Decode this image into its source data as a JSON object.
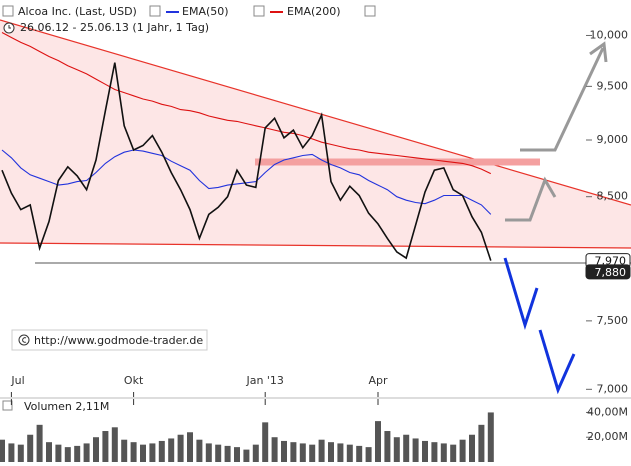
{
  "chart_data": {
    "type": "line",
    "subtitle": "26.06.12 - 25.06.13 (1 Jahr, 1 Tag)",
    "watermark": "http://www.godmode-trader.de",
    "log_scale": true,
    "categories": [
      null,
      "Jul",
      null,
      null,
      null,
      null,
      null,
      null,
      null,
      null,
      null,
      null,
      null,
      null,
      "Okt",
      null,
      null,
      null,
      null,
      null,
      null,
      null,
      null,
      null,
      null,
      null,
      null,
      null,
      "Jan '13",
      null,
      null,
      null,
      null,
      null,
      null,
      null,
      null,
      null,
      null,
      null,
      "Apr",
      null,
      null,
      null,
      null,
      null,
      null,
      null,
      null,
      null,
      null,
      null,
      null
    ],
    "series": [
      {
        "name": "Alcoa Inc. (Last, USD)",
        "color": "#111111",
        "values": [
          8730,
          8530,
          8390,
          8430,
          8070,
          8290,
          8640,
          8760,
          8680,
          8560,
          8820,
          9270,
          9730,
          9130,
          8910,
          8950,
          9040,
          8890,
          8710,
          8560,
          8390,
          8150,
          8350,
          8410,
          8500,
          8730,
          8600,
          8580,
          9110,
          9200,
          9020,
          9090,
          8930,
          9040,
          9230,
          8630,
          8470,
          8590,
          8510,
          8360,
          8270,
          8150,
          8040,
          7990,
          8260,
          8540,
          8730,
          8750,
          8560,
          8510,
          8330,
          8200,
          7970
        ]
      },
      {
        "name": "EMA(50)",
        "color": "#2233dd",
        "values": [
          8910,
          8840,
          8750,
          8690,
          8660,
          8630,
          8600,
          8610,
          8630,
          8640,
          8710,
          8790,
          8850,
          8890,
          8910,
          8900,
          8880,
          8860,
          8810,
          8770,
          8730,
          8640,
          8570,
          8580,
          8600,
          8610,
          8620,
          8630,
          8710,
          8780,
          8820,
          8840,
          8860,
          8870,
          8820,
          8780,
          8750,
          8710,
          8690,
          8640,
          8600,
          8560,
          8500,
          8470,
          8450,
          8440,
          8470,
          8510,
          8510,
          8510,
          8470,
          8430,
          8350
        ]
      },
      {
        "name": "EMA(200)",
        "color": "#dd1111",
        "values": [
          10030,
          9980,
          9930,
          9890,
          9840,
          9790,
          9750,
          9700,
          9660,
          9620,
          9570,
          9520,
          9470,
          9440,
          9410,
          9380,
          9360,
          9330,
          9310,
          9280,
          9270,
          9250,
          9220,
          9200,
          9180,
          9170,
          9150,
          9130,
          9110,
          9090,
          9070,
          9060,
          9040,
          9010,
          8980,
          8960,
          8940,
          8920,
          8910,
          8890,
          8880,
          8870,
          8860,
          8850,
          8840,
          8830,
          8820,
          8810,
          8800,
          8790,
          8770,
          8740,
          8700
        ]
      }
    ],
    "ylim": [
      6960,
      10260
    ],
    "yticks": [
      {
        "value": 10000,
        "label": "10,000"
      },
      {
        "value": 9500,
        "label": "9,500"
      },
      {
        "value": 9000,
        "label": "9,000"
      },
      {
        "value": 8500,
        "label": "8,500"
      },
      {
        "value": 7500,
        "label": "7,500"
      },
      {
        "value": 7000,
        "label": "7,000"
      }
    ],
    "price_tags": [
      {
        "value": 7970,
        "label": "7,970"
      },
      {
        "value": 7880,
        "label": "7,880"
      }
    ],
    "volume": {
      "label": "Volumen 2,11M",
      "color": "#555555",
      "values": [
        18,
        15,
        14,
        22,
        30,
        16,
        14,
        12,
        13,
        15,
        20,
        25,
        28,
        18,
        16,
        14,
        15,
        17,
        19,
        22,
        24,
        18,
        15,
        14,
        13,
        12,
        10,
        14,
        32,
        20,
        17,
        16,
        15,
        14,
        18,
        16,
        15,
        14,
        13,
        12,
        33,
        25,
        20,
        22,
        19,
        17,
        16,
        15,
        14,
        18,
        22,
        30,
        40
      ],
      "ylim": [
        0,
        46
      ],
      "yticks": [
        {
          "value": 40,
          "label": "40,00M"
        },
        {
          "value": 20,
          "label": "20,00M"
        }
      ]
    }
  }
}
